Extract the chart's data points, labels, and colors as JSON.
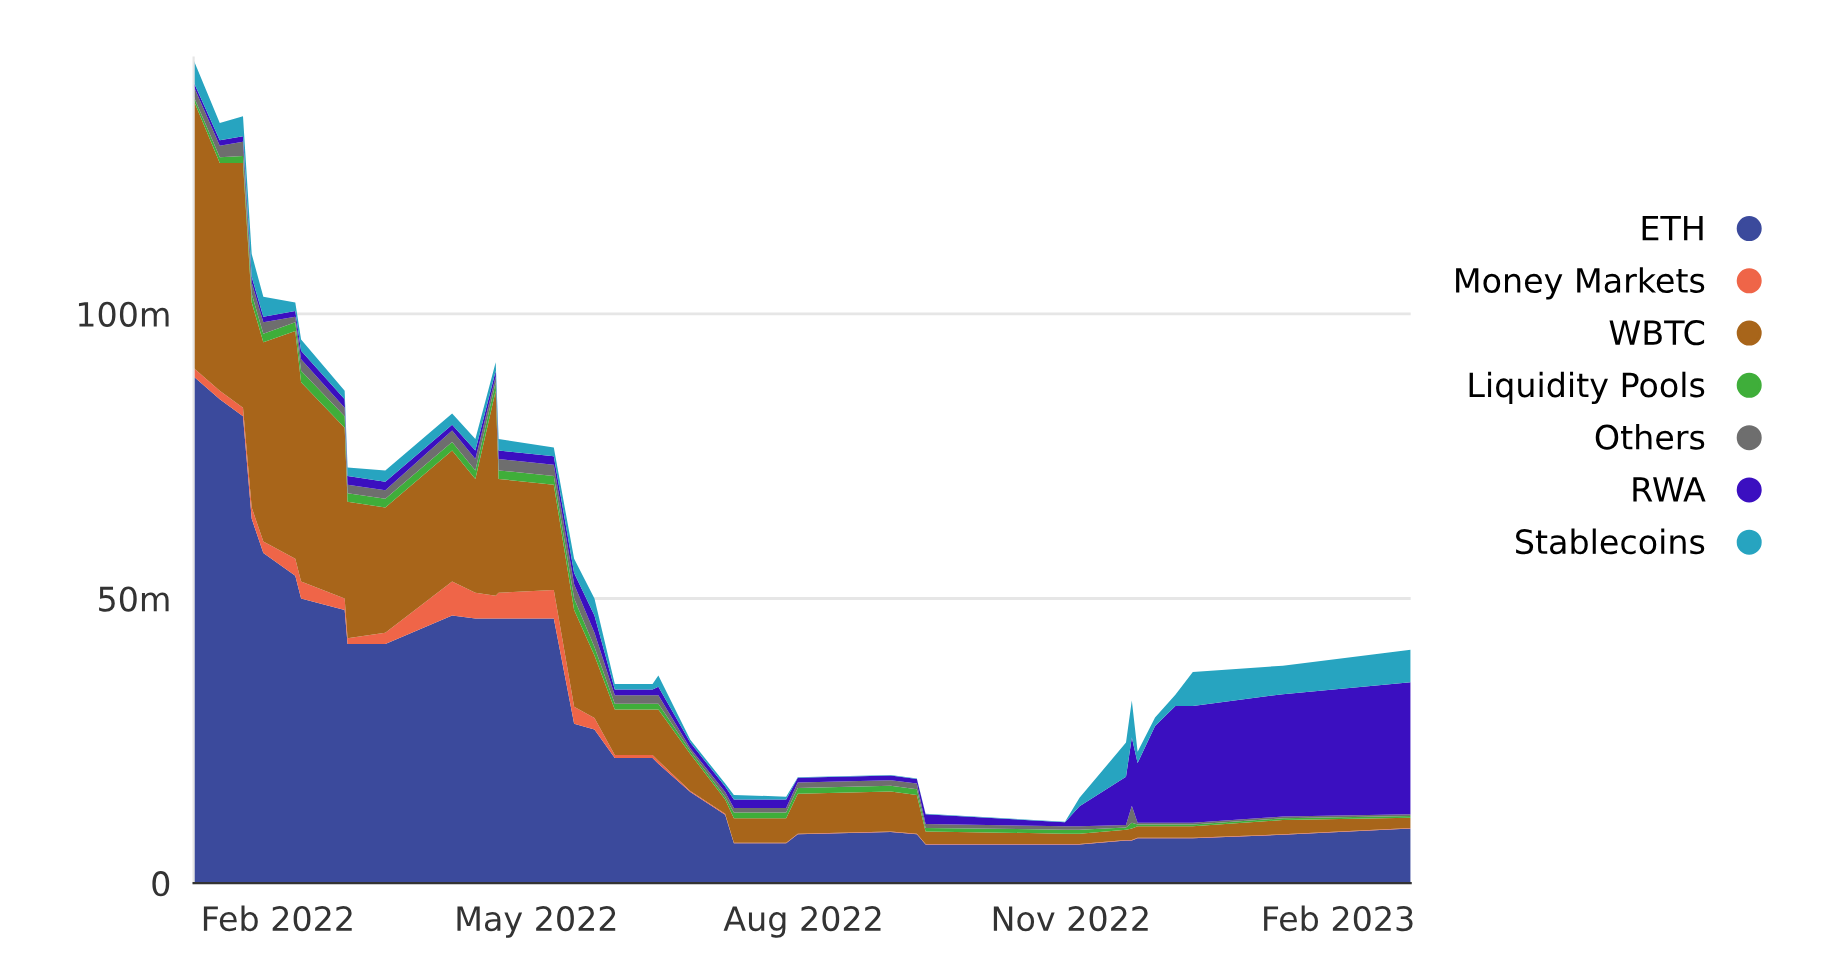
{
  "chart_data": {
    "type": "area",
    "stacked": true,
    "x": [
      "2022-01-03",
      "2022-01-12",
      "2022-01-20",
      "2022-01-23",
      "2022-01-27",
      "2022-02-07",
      "2022-02-09",
      "2022-02-24",
      "2022-02-25",
      "2022-03-10",
      "2022-04-02",
      "2022-04-10",
      "2022-04-17",
      "2022-04-18",
      "2022-05-07",
      "2022-05-14",
      "2022-05-21",
      "2022-05-28",
      "2022-06-10",
      "2022-06-12",
      "2022-06-23",
      "2022-07-05",
      "2022-07-08",
      "2022-07-26",
      "2022-07-30",
      "2022-08-31",
      "2022-09-09",
      "2022-09-12",
      "2022-10-30",
      "2022-11-04",
      "2022-11-20",
      "2022-11-22",
      "2022-11-24",
      "2022-11-30",
      "2022-12-07",
      "2022-12-13",
      "2023-01-13",
      "2023-02-26"
    ],
    "series": [
      {
        "name": "ETH",
        "color": "#3b4a9c",
        "values": [
          89,
          85,
          82,
          64,
          58,
          54,
          50,
          48,
          42,
          42,
          47,
          46.5,
          46.5,
          46.5,
          46.5,
          28,
          27,
          22,
          22,
          21,
          16,
          12,
          7,
          7,
          8.6,
          9,
          8.6,
          6.8,
          6.8,
          6.8,
          7.5,
          7.5,
          7.9,
          7.9,
          7.9,
          7.9,
          8.5,
          9.6
        ]
      },
      {
        "name": "Money Markets",
        "color": "#ef6548",
        "values": [
          1.5,
          1.5,
          1.5,
          2,
          2,
          3,
          3,
          2,
          1,
          2,
          6,
          4.5,
          4,
          4.5,
          5,
          3,
          2,
          0.5,
          0.5,
          0.5,
          0.2,
          0.2,
          0.1,
          0.1,
          0.1,
          0.1,
          0.1,
          0.1,
          0.1,
          0.1,
          0.1,
          0.1,
          0.1,
          0.1,
          0.1,
          0.1,
          0.1,
          0.1
        ]
      },
      {
        "name": "WBTC",
        "color": "#a8651a",
        "values": [
          47,
          40,
          43,
          36,
          35,
          40,
          35,
          30,
          24,
          22,
          23,
          20,
          36,
          20,
          18.5,
          17,
          11,
          8,
          8,
          9,
          6.5,
          2.5,
          4.3,
          4.3,
          7,
          7,
          6.8,
          2.2,
          1.8,
          1.8,
          1.8,
          2,
          2,
          2,
          2,
          2,
          2.5,
          1.8
        ]
      },
      {
        "name": "Liquidity Pools",
        "color": "#3fae3a",
        "values": [
          0.7,
          1,
          1.2,
          1.5,
          1.5,
          1.5,
          2,
          2,
          1.5,
          1.5,
          1.5,
          1.5,
          1.5,
          1.5,
          1.5,
          2,
          1.5,
          1,
          1,
          1,
          0.5,
          0.5,
          1,
          1,
          1,
          1,
          1,
          0.6,
          0.7,
          0.7,
          0.4,
          1,
          0.3,
          0.3,
          0.3,
          0.3,
          0.3,
          0.3
        ]
      },
      {
        "name": "Others",
        "color": "#6e6e6e",
        "values": [
          1.8,
          2,
          2.5,
          2,
          2,
          1,
          2,
          1.5,
          1.5,
          1.5,
          2,
          2,
          1,
          2,
          2,
          2.5,
          2.5,
          1.5,
          1.5,
          1.5,
          0.5,
          0.8,
          0.8,
          0.8,
          1,
          1,
          1,
          0.7,
          0.6,
          0.6,
          0.4,
          3,
          0.3,
          0.3,
          0.3,
          0.3,
          0.3,
          0.3
        ]
      },
      {
        "name": "RWA",
        "color": "#3b0fc0",
        "values": [
          0.7,
          1,
          1,
          1,
          1,
          1,
          1.5,
          1.5,
          1.5,
          1.5,
          1,
          1.5,
          1,
          1.5,
          1.5,
          2,
          3,
          1,
          1,
          1.5,
          1,
          1,
          1.5,
          1.5,
          0.8,
          0.8,
          0.8,
          1.7,
          0.7,
          3.5,
          8.5,
          12,
          10.5,
          17,
          20.5,
          20.5,
          21.5,
          23.2
        ]
      },
      {
        "name": "Stablecoins",
        "color": "#27a4c0",
        "values": [
          3.9,
          3,
          3.5,
          4,
          3.5,
          1.5,
          2,
          1.5,
          1.5,
          2,
          2,
          2,
          1.5,
          2,
          1.5,
          2.5,
          3,
          1,
          1,
          2,
          0.5,
          0.5,
          0.8,
          0.5,
          0.1,
          0.1,
          0.1,
          0.1,
          0.1,
          1.5,
          6,
          6.5,
          2,
          1.5,
          2,
          6,
          5,
          5.7
        ]
      }
    ],
    "xlim": [
      "2022-01-03",
      "2023-02-26"
    ],
    "xticks": [
      {
        "value": "2022-02-01",
        "label": "Feb 2022"
      },
      {
        "value": "2022-05-01",
        "label": "May 2022"
      },
      {
        "value": "2022-08-01",
        "label": "Aug 2022"
      },
      {
        "value": "2022-11-01",
        "label": "Nov 2022"
      },
      {
        "value": "2023-02-01",
        "label": "Feb 2023"
      }
    ],
    "ylim": [
      0,
      145
    ],
    "yticks": [
      {
        "value": 0,
        "label": "0"
      },
      {
        "value": 50,
        "label": "50m"
      },
      {
        "value": 100,
        "label": "100m"
      }
    ],
    "grid": "y",
    "legend": "right"
  }
}
